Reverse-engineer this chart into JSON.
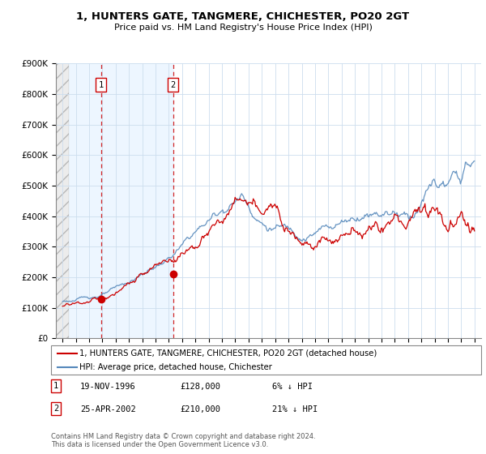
{
  "title": "1, HUNTERS GATE, TANGMERE, CHICHESTER, PO20 2GT",
  "subtitle": "Price paid vs. HM Land Registry's House Price Index (HPI)",
  "legend_entry1": "1, HUNTERS GATE, TANGMERE, CHICHESTER, PO20 2GT (detached house)",
  "legend_entry2": "HPI: Average price, detached house, Chichester",
  "table_rows": [
    {
      "num": "1",
      "date": "19-NOV-1996",
      "price": "£128,000",
      "hpi": "6% ↓ HPI"
    },
    {
      "num": "2",
      "date": "25-APR-2002",
      "price": "£210,000",
      "hpi": "21% ↓ HPI"
    }
  ],
  "footnote": "Contains HM Land Registry data © Crown copyright and database right 2024.\nThis data is licensed under the Open Government Licence v3.0.",
  "transaction_dates": [
    1996.89,
    2002.32
  ],
  "transaction_prices": [
    128000,
    210000
  ],
  "hpi_color": "#5588bb",
  "price_paid_color": "#cc0000",
  "transaction_color": "#cc0000",
  "dashed_line_color": "#cc0000",
  "ylim": [
    0,
    900000
  ],
  "xlim_start": 1993.5,
  "xlim_end": 2025.5
}
